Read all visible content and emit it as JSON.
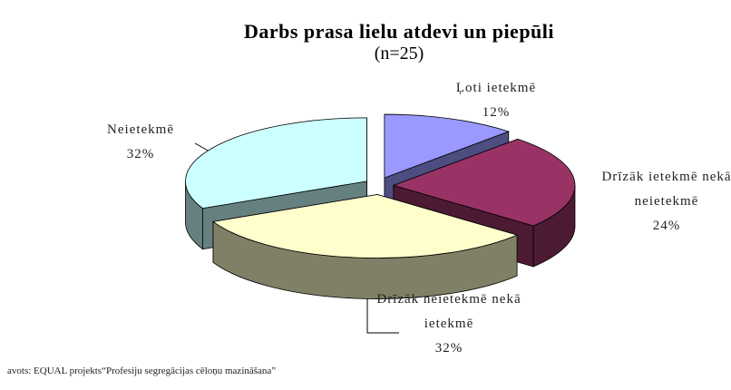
{
  "chart_data": {
    "type": "pie3d",
    "title": "Darbs prasa lielu atdevi un piepūli",
    "subtitle": "(n=25)",
    "categories": [
      "Ļoti ietekmē",
      "Drīzāk ietekmē nekā neietekmē",
      "Drīzāk neietekmē nekā ietekmē",
      "Neietekmē"
    ],
    "values": [
      12,
      24,
      32,
      32
    ],
    "value_labels": [
      "12%",
      "24%",
      "32%",
      "32%"
    ],
    "colors": [
      "#9999ff",
      "#993366",
      "#ffffcc",
      "#ccffff"
    ],
    "source": "avots: EQUAL projekts“Profesiju segregācijas cēloņu mazināšana”"
  }
}
